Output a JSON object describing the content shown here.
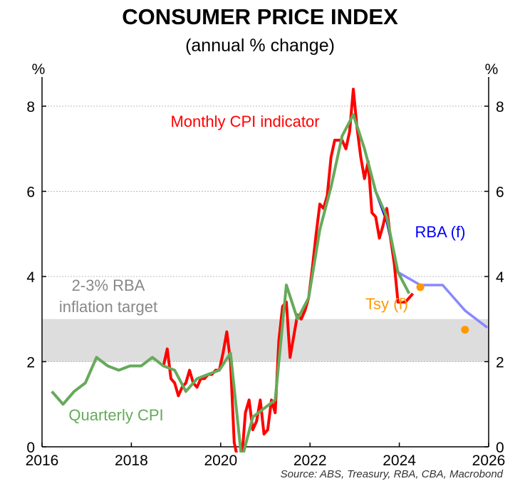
{
  "chart_data": {
    "type": "line",
    "title": "CONSUMER PRICE INDEX",
    "subtitle": "(annual % change)",
    "ylabel_left": "%",
    "ylabel_right": "%",
    "xlim": [
      2016,
      2026
    ],
    "ylim": [
      0,
      8.7
    ],
    "x_ticks": [
      "2016",
      "2018",
      "2020",
      "2022",
      "2024",
      "2026"
    ],
    "y_ticks": [
      "0",
      "2",
      "4",
      "6",
      "8"
    ],
    "grid": true,
    "target_band": {
      "label_line1": "2-3% RBA",
      "label_line2": "inflation target",
      "low": 2,
      "high": 3
    },
    "series": [
      {
        "name": "Quarterly CPI",
        "color": "#66aa5a",
        "frequency": "quarterly",
        "start": "2016-Q1",
        "values": [
          1.3,
          1.0,
          1.3,
          1.5,
          2.1,
          1.9,
          1.8,
          1.9,
          1.9,
          2.1,
          1.9,
          1.8,
          1.3,
          1.6,
          1.7,
          1.8,
          2.2,
          -0.3,
          0.7,
          0.9,
          1.1,
          3.8,
          3.0,
          3.5,
          5.1,
          6.1,
          7.3,
          7.8,
          7.0,
          6.0,
          5.4,
          4.1,
          3.6
        ]
      },
      {
        "name": "Monthly CPI indicator",
        "color": "#ff0000",
        "frequency": "monthly",
        "start": "2018-09",
        "values": [
          1.9,
          2.3,
          1.6,
          1.5,
          1.2,
          1.4,
          1.5,
          1.8,
          1.5,
          1.4,
          1.6,
          1.6,
          1.7,
          1.7,
          1.8,
          1.8,
          2.2,
          2.7,
          2.0,
          0.1,
          -0.3,
          -0.3,
          0.8,
          1.1,
          0.4,
          0.6,
          1.1,
          0.3,
          0.4,
          1.1,
          0.8,
          2.5,
          3.3,
          3.4,
          2.1,
          2.6,
          3.1,
          3.0,
          3.2,
          3.5,
          4.2,
          5.0,
          5.7,
          5.6,
          5.9,
          6.8,
          7.2,
          7.2,
          7.2,
          7.0,
          7.4,
          8.4,
          7.5,
          6.8,
          6.3,
          6.7,
          5.5,
          5.4,
          4.9,
          5.2,
          5.6,
          4.9,
          4.3,
          3.4,
          3.4,
          3.4,
          3.5,
          3.6
        ]
      },
      {
        "name": "RBA (f)",
        "color": "#0000ff",
        "forecast_color": "#8888ff",
        "frequency": "quarterly",
        "points": [
          [
            "2022-Q4",
            7.8
          ],
          [
            "2023-Q1",
            7.0
          ],
          [
            "2023-Q2",
            6.0
          ],
          [
            "2023-Q3",
            5.3
          ],
          [
            "2023-Q4",
            4.1
          ]
        ],
        "forecast_points": [
          [
            "2023-Q4",
            4.1
          ],
          [
            "2024-Q2",
            3.8
          ],
          [
            "2024-Q4",
            3.8
          ],
          [
            "2025-Q2",
            3.2
          ],
          [
            "2025-Q4",
            2.8
          ]
        ]
      },
      {
        "name": "Tsy (f)",
        "color": "#ff9900",
        "type": "scatter",
        "points": [
          [
            "2024-Q2",
            3.75
          ],
          [
            "2025-Q2",
            2.75
          ]
        ]
      }
    ],
    "source": "Source: ABS, Treasury, RBA, CBA, Macrobond"
  }
}
